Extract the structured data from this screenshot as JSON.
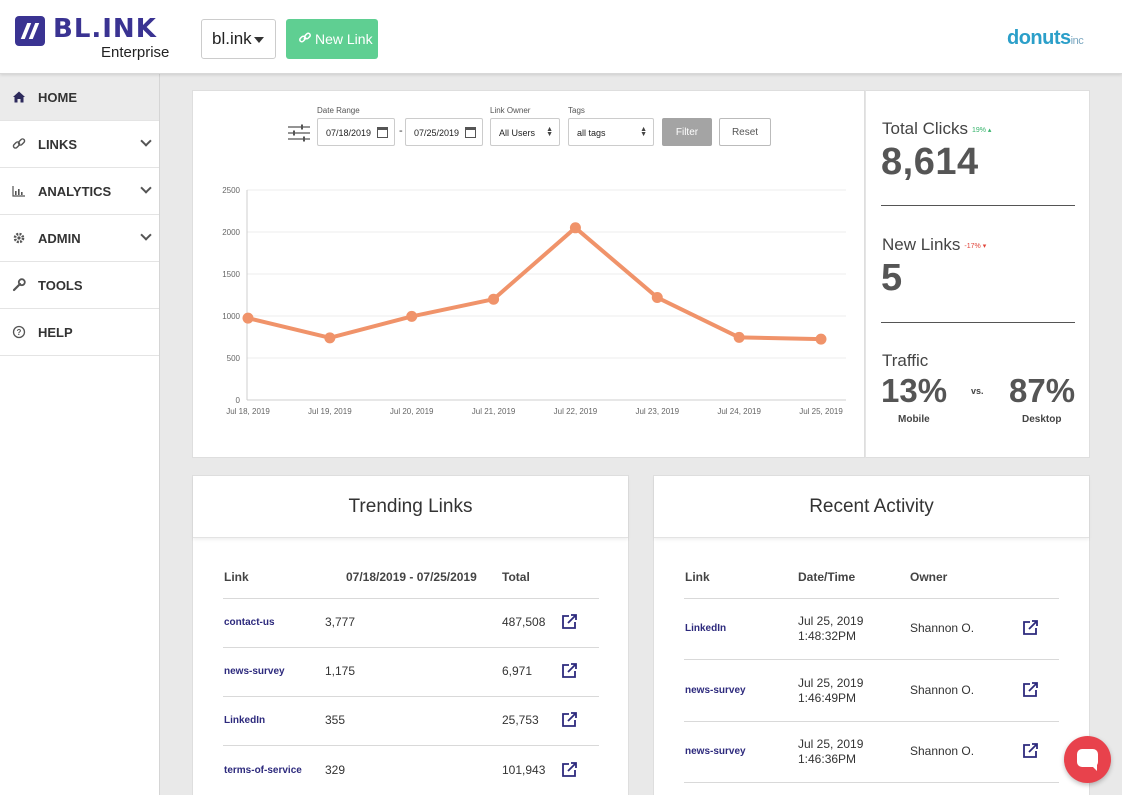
{
  "header": {
    "logo_text": "BL.INK",
    "logo_subtitle": "Enterprise",
    "domain_select": "bl.ink",
    "new_link_label": "New Link",
    "brand_name": "donuts",
    "brand_suffix": "inc"
  },
  "sidebar": {
    "items": [
      {
        "label": "HOME",
        "icon": "home-icon",
        "active": true,
        "expandable": false
      },
      {
        "label": "LINKS",
        "icon": "link-icon",
        "active": false,
        "expandable": true
      },
      {
        "label": "ANALYTICS",
        "icon": "bar-chart-icon",
        "active": false,
        "expandable": true
      },
      {
        "label": "ADMIN",
        "icon": "gear-icon",
        "active": false,
        "expandable": true
      },
      {
        "label": "TOOLS",
        "icon": "wrench-icon",
        "active": false,
        "expandable": false
      },
      {
        "label": "HELP",
        "icon": "help-icon",
        "active": false,
        "expandable": false
      }
    ]
  },
  "filters": {
    "date_range_label": "Date Range",
    "date_from": "07/18/2019",
    "date_separator": "-",
    "date_to": "07/25/2019",
    "link_owner_label": "Link Owner",
    "link_owner_value": "All Users",
    "tags_label": "Tags",
    "tags_value": "all tags",
    "filter_button": "Filter",
    "reset_button": "Reset"
  },
  "chart_data": {
    "type": "line",
    "title": "",
    "xlabel": "",
    "ylabel": "",
    "categories": [
      "Jul 18, 2019",
      "Jul 19, 2019",
      "Jul 20, 2019",
      "Jul 21, 2019",
      "Jul 22, 2019",
      "Jul 23, 2019",
      "Jul 24, 2019",
      "Jul 25, 2019"
    ],
    "values": [
      975,
      740,
      995,
      1200,
      2050,
      1220,
      745,
      725
    ],
    "ylim": [
      0,
      2500
    ],
    "yticks": [
      0,
      500,
      1000,
      1500,
      2000,
      2500
    ],
    "grid": true,
    "color": "#f0936a"
  },
  "stats": {
    "total_clicks_label": "Total Clicks",
    "total_clicks_delta": "19% ▴",
    "total_clicks_value": "8,614",
    "new_links_label": "New Links",
    "new_links_delta": "-17% ▾",
    "new_links_value": "5",
    "traffic_label": "Traffic",
    "mobile_pct": "13%",
    "mobile_label": "Mobile",
    "vs_label": "vs.",
    "desktop_pct": "87%",
    "desktop_label": "Desktop"
  },
  "trending": {
    "title": "Trending Links",
    "headers": {
      "link": "Link",
      "range": "07/18/2019 - 07/25/2019",
      "total": "Total"
    },
    "rows": [
      {
        "link": "contact-us",
        "range": "3,777",
        "total": "487,508"
      },
      {
        "link": "news-survey",
        "range": "1,175",
        "total": "6,971"
      },
      {
        "link": "LinkedIn",
        "range": "355",
        "total": "25,753"
      },
      {
        "link": "terms-of-service",
        "range": "329",
        "total": "101,943"
      }
    ]
  },
  "recent": {
    "title": "Recent Activity",
    "headers": {
      "link": "Link",
      "datetime": "Date/Time",
      "owner": "Owner"
    },
    "rows": [
      {
        "link": "LinkedIn",
        "date": "Jul 25, 2019",
        "time": "1:48:32PM",
        "owner": "Shannon O."
      },
      {
        "link": "news-survey",
        "date": "Jul 25, 2019",
        "time": "1:46:49PM",
        "owner": "Shannon O."
      },
      {
        "link": "news-survey",
        "date": "Jul 25, 2019",
        "time": "1:46:36PM",
        "owner": "Shannon O."
      }
    ]
  }
}
